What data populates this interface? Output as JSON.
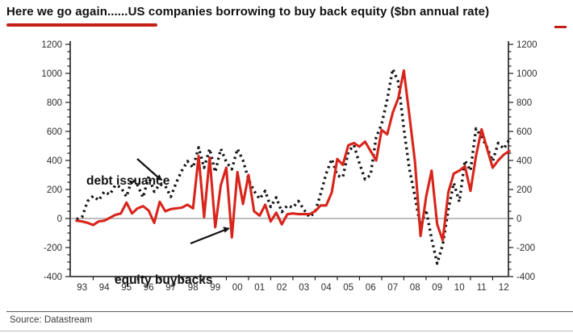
{
  "header": {
    "title": "Here we go again......US companies borrowing to buy back equity ($bn annual rate)",
    "underline_color": "#c32017",
    "dash_color": "#c32017"
  },
  "chart_data": {
    "type": "line",
    "title": "US companies borrowing to buy back equity ($bn annual rate)",
    "x_start": 1992.75,
    "x_step": 0.25,
    "xtick_labels": [
      "93",
      "94",
      "95",
      "96",
      "97",
      "98",
      "99",
      "00",
      "01",
      "02",
      "03",
      "04",
      "05",
      "06",
      "07",
      "08",
      "09",
      "10",
      "11",
      "12"
    ],
    "ylim": [
      -400,
      1200
    ],
    "ytick_step": 200,
    "ytick_labels": [
      "-400",
      "-200",
      "0",
      "200",
      "400",
      "600",
      "800",
      "1000",
      "1200"
    ],
    "y_axes": "left-and-right",
    "zero_line": true,
    "grid": false,
    "legend": "none (inline annotations with arrows)",
    "series": [
      {
        "name": "debt issuance",
        "line_style": "dotted",
        "color": "#151515",
        "values": [
          -5,
          10,
          120,
          155,
          125,
          185,
          165,
          230,
          215,
          150,
          270,
          230,
          145,
          290,
          185,
          235,
          225,
          150,
          250,
          330,
          395,
          350,
          490,
          350,
          480,
          320,
          480,
          390,
          340,
          480,
          400,
          270,
          190,
          135,
          190,
          80,
          145,
          45,
          90,
          75,
          120,
          60,
          10,
          45,
          170,
          310,
          410,
          295,
          285,
          460,
          505,
          380,
          270,
          300,
          560,
          650,
          820,
          1030,
          940,
          620,
          340,
          150,
          -60,
          60,
          -140,
          -310,
          -180,
          60,
          245,
          115,
          400,
          330,
          620,
          560,
          490,
          395,
          520,
          480,
          545
        ]
      },
      {
        "name": "equity buybacks",
        "line_style": "solid",
        "color": "#d8251c",
        "values": [
          -15,
          -20,
          -30,
          -45,
          -20,
          -15,
          5,
          25,
          35,
          110,
          35,
          70,
          85,
          55,
          -30,
          115,
          50,
          65,
          70,
          75,
          95,
          70,
          430,
          10,
          420,
          -60,
          230,
          350,
          -130,
          320,
          100,
          300,
          50,
          20,
          95,
          -20,
          40,
          -40,
          30,
          35,
          30,
          30,
          30,
          50,
          90,
          90,
          180,
          410,
          370,
          505,
          520,
          495,
          530,
          465,
          400,
          610,
          580,
          730,
          830,
          1020,
          710,
          390,
          -120,
          150,
          330,
          -40,
          -150,
          180,
          310,
          330,
          360,
          190,
          430,
          615,
          480,
          350,
          400,
          440,
          465
        ]
      }
    ],
    "annotations": [
      {
        "text": "debt issuance",
        "points_to": "dotted series near 1998"
      },
      {
        "text": "equity buybacks",
        "points_to": "red series near 1999-2000"
      }
    ]
  },
  "footer": {
    "source": "Source: Datastream"
  }
}
